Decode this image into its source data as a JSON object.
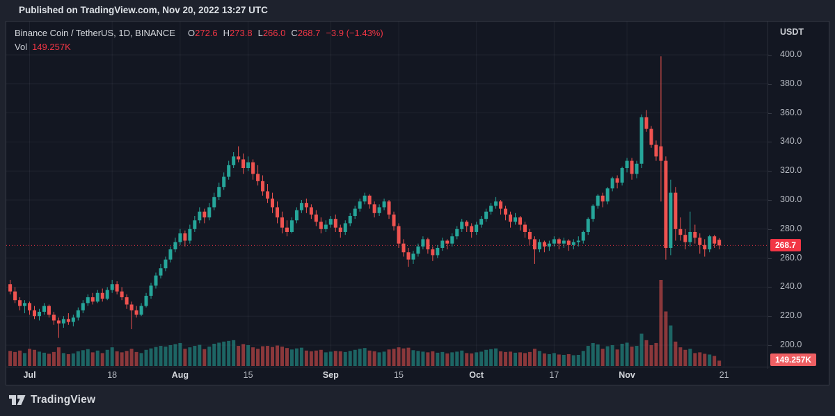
{
  "published_bar": {
    "text": "Published on TradingView.com, Nov 20, 2022 13:27 UTC"
  },
  "legend": {
    "title": "Binance Coin / TetherUS, 1D, BINANCE",
    "o_label": "O",
    "o_value": "272.6",
    "h_label": "H",
    "h_value": "273.8",
    "l_label": "L",
    "l_value": "266.0",
    "c_label": "C",
    "c_value": "268.7",
    "change": "−3.9 (−1.43%)",
    "vol_label": "Vol",
    "vol_value": "149.257K"
  },
  "price_axis": {
    "currency": "USDT",
    "ticks": [
      "400.0",
      "380.0",
      "360.0",
      "340.0",
      "320.0",
      "300.0",
      "280.0",
      "260.0",
      "240.0",
      "220.0",
      "200.0"
    ],
    "last_price_label": "268.7",
    "volume_label": "149.257K"
  },
  "footer": {
    "brand": "TradingView"
  },
  "colors": {
    "up": "#26a69a",
    "down": "#ef5350",
    "legend_value_red": "#f23645",
    "last_price_line": "#f23645",
    "grid": "rgba(240,243,250,0.06)",
    "background": "#131722",
    "outer_background": "#1e222d"
  },
  "chart_data": {
    "type": "candlestick",
    "title": "Binance Coin / TetherUS, 1D, BINANCE",
    "symbol": "Binance Coin / TetherUS",
    "interval": "1D",
    "exchange": "BINANCE",
    "currency": "USDT",
    "ylim": [
      200,
      400
    ],
    "price_gridlines": [
      200,
      220,
      240,
      260,
      280,
      300,
      320,
      340,
      360,
      380,
      400
    ],
    "x_ticks": [
      [
        "Jul",
        4
      ],
      [
        "18",
        21
      ],
      [
        "Aug",
        35
      ],
      [
        "15",
        49
      ],
      [
        "Sep",
        66
      ],
      [
        "15",
        80
      ],
      [
        "Oct",
        96
      ],
      [
        "17",
        112
      ],
      [
        "Nov",
        127
      ],
      [
        "21",
        147
      ]
    ],
    "last_close": 268.7,
    "last_volume": 149.257,
    "volume_unit": "K",
    "columns": [
      "open",
      "high",
      "low",
      "close",
      "volume_K"
    ],
    "candles": [
      [
        242,
        245,
        235,
        237,
        420
      ],
      [
        237,
        240,
        229,
        231,
        390
      ],
      [
        231,
        233,
        224,
        227,
        430
      ],
      [
        227,
        231,
        222,
        229,
        360
      ],
      [
        229,
        230,
        221,
        224,
        480
      ],
      [
        224,
        227,
        218,
        220,
        450
      ],
      [
        220,
        225,
        217,
        223,
        400
      ],
      [
        223,
        229,
        221,
        227,
        370
      ],
      [
        227,
        228,
        219,
        221,
        340
      ],
      [
        221,
        223,
        214,
        217,
        390
      ],
      [
        217,
        219,
        205,
        215,
        520
      ],
      [
        215,
        220,
        212,
        218,
        360
      ],
      [
        218,
        222,
        214,
        216,
        330
      ],
      [
        216,
        221,
        213,
        219,
        350
      ],
      [
        219,
        226,
        217,
        224,
        410
      ],
      [
        224,
        231,
        222,
        229,
        440
      ],
      [
        229,
        235,
        227,
        233,
        470
      ],
      [
        233,
        236,
        228,
        230,
        380
      ],
      [
        230,
        238,
        229,
        236,
        430
      ],
      [
        236,
        239,
        230,
        232,
        360
      ],
      [
        232,
        240,
        231,
        238,
        450
      ],
      [
        238,
        245,
        236,
        242,
        520
      ],
      [
        242,
        244,
        235,
        237,
        410
      ],
      [
        237,
        240,
        231,
        233,
        380
      ],
      [
        233,
        235,
        225,
        228,
        420
      ],
      [
        228,
        230,
        211,
        224,
        480
      ],
      [
        224,
        227,
        219,
        221,
        390
      ],
      [
        221,
        229,
        220,
        227,
        360
      ],
      [
        227,
        236,
        226,
        234,
        450
      ],
      [
        234,
        243,
        232,
        241,
        490
      ],
      [
        241,
        250,
        239,
        248,
        530
      ],
      [
        248,
        256,
        246,
        253,
        560
      ],
      [
        253,
        261,
        251,
        259,
        540
      ],
      [
        259,
        268,
        257,
        266,
        580
      ],
      [
        266,
        274,
        264,
        271,
        610
      ],
      [
        271,
        280,
        269,
        277,
        640
      ],
      [
        277,
        279,
        268,
        272,
        480
      ],
      [
        272,
        283,
        270,
        280,
        520
      ],
      [
        280,
        289,
        278,
        286,
        560
      ],
      [
        286,
        295,
        284,
        292,
        590
      ],
      [
        292,
        294,
        284,
        288,
        470
      ],
      [
        288,
        298,
        286,
        295,
        540
      ],
      [
        295,
        305,
        293,
        302,
        620
      ],
      [
        302,
        312,
        300,
        309,
        650
      ],
      [
        309,
        319,
        307,
        316,
        680
      ],
      [
        316,
        327,
        314,
        324,
        700
      ],
      [
        324,
        333,
        322,
        330,
        720
      ],
      [
        330,
        337,
        326,
        328,
        560
      ],
      [
        328,
        332,
        318,
        322,
        610
      ],
      [
        322,
        330,
        320,
        326,
        580
      ],
      [
        326,
        328,
        314,
        318,
        520
      ],
      [
        318,
        324,
        310,
        313,
        480
      ],
      [
        313,
        317,
        303,
        306,
        550
      ],
      [
        306,
        311,
        298,
        301,
        560
      ],
      [
        301,
        305,
        291,
        295,
        530
      ],
      [
        295,
        299,
        284,
        288,
        570
      ],
      [
        288,
        292,
        277,
        281,
        540
      ],
      [
        281,
        286,
        275,
        278,
        500
      ],
      [
        278,
        288,
        277,
        286,
        460
      ],
      [
        286,
        295,
        284,
        293,
        490
      ],
      [
        293,
        300,
        291,
        298,
        510
      ],
      [
        298,
        301,
        291,
        295,
        430
      ],
      [
        295,
        297,
        287,
        290,
        410
      ],
      [
        290,
        293,
        282,
        285,
        430
      ],
      [
        285,
        288,
        277,
        280,
        450
      ],
      [
        280,
        286,
        278,
        283,
        380
      ],
      [
        283,
        289,
        281,
        287,
        400
      ],
      [
        287,
        290,
        278,
        281,
        420
      ],
      [
        281,
        283,
        274,
        278,
        410
      ],
      [
        278,
        286,
        276,
        284,
        390
      ],
      [
        284,
        291,
        282,
        289,
        420
      ],
      [
        289,
        296,
        287,
        294,
        450
      ],
      [
        294,
        301,
        292,
        299,
        480
      ],
      [
        299,
        305,
        297,
        303,
        500
      ],
      [
        303,
        304,
        294,
        297,
        430
      ],
      [
        297,
        299,
        288,
        291,
        410
      ],
      [
        291,
        297,
        289,
        295,
        380
      ],
      [
        295,
        301,
        293,
        299,
        400
      ],
      [
        299,
        300,
        287,
        290,
        460
      ],
      [
        290,
        292,
        279,
        282,
        480
      ],
      [
        282,
        284,
        267,
        270,
        520
      ],
      [
        270,
        273,
        261,
        264,
        490
      ],
      [
        264,
        267,
        254,
        259,
        510
      ],
      [
        259,
        265,
        256,
        263,
        440
      ],
      [
        263,
        270,
        261,
        268,
        420
      ],
      [
        268,
        275,
        266,
        273,
        400
      ],
      [
        273,
        274,
        263,
        266,
        380
      ],
      [
        266,
        268,
        258,
        262,
        410
      ],
      [
        262,
        269,
        260,
        267,
        370
      ],
      [
        267,
        274,
        265,
        272,
        390
      ],
      [
        272,
        273,
        266,
        270,
        350
      ],
      [
        270,
        277,
        268,
        275,
        380
      ],
      [
        275,
        282,
        273,
        280,
        400
      ],
      [
        280,
        287,
        278,
        285,
        430
      ],
      [
        285,
        286,
        278,
        282,
        360
      ],
      [
        282,
        284,
        274,
        278,
        350
      ],
      [
        278,
        285,
        276,
        283,
        380
      ],
      [
        283,
        289,
        281,
        287,
        400
      ],
      [
        287,
        294,
        285,
        292,
        450
      ],
      [
        292,
        298,
        290,
        296,
        470
      ],
      [
        296,
        302,
        294,
        299,
        490
      ],
      [
        299,
        300,
        290,
        294,
        410
      ],
      [
        294,
        296,
        286,
        290,
        390
      ],
      [
        290,
        292,
        281,
        285,
        400
      ],
      [
        285,
        291,
        283,
        288,
        370
      ],
      [
        288,
        289,
        279,
        283,
        380
      ],
      [
        283,
        285,
        274,
        278,
        360
      ],
      [
        278,
        280,
        269,
        273,
        390
      ],
      [
        273,
        275,
        256,
        266,
        480
      ],
      [
        266,
        273,
        264,
        271,
        420
      ],
      [
        271,
        272,
        264,
        268,
        350
      ],
      [
        268,
        272,
        265,
        270,
        330
      ],
      [
        270,
        275,
        268,
        273,
        360
      ],
      [
        273,
        274,
        266,
        270,
        320
      ],
      [
        270,
        274,
        267,
        272,
        310
      ],
      [
        272,
        273,
        265,
        269,
        330
      ],
      [
        269,
        273,
        266,
        271,
        300
      ],
      [
        271,
        275,
        268,
        272,
        310
      ],
      [
        272,
        279,
        270,
        278,
        420
      ],
      [
        278,
        288,
        276,
        287,
        560
      ],
      [
        287,
        297,
        285,
        296,
        640
      ],
      [
        296,
        304,
        294,
        303,
        600
      ],
      [
        303,
        305,
        295,
        299,
        480
      ],
      [
        299,
        309,
        297,
        308,
        550
      ],
      [
        308,
        316,
        306,
        315,
        580
      ],
      [
        315,
        317,
        308,
        312,
        460
      ],
      [
        312,
        323,
        310,
        322,
        620
      ],
      [
        322,
        329,
        319,
        327,
        650
      ],
      [
        327,
        329,
        314,
        318,
        540
      ],
      [
        318,
        327,
        315,
        325,
        560
      ],
      [
        325,
        359,
        322,
        357,
        900
      ],
      [
        357,
        362,
        347,
        349,
        720
      ],
      [
        349,
        351,
        336,
        338,
        580
      ],
      [
        338,
        341,
        327,
        330,
        640
      ],
      [
        337,
        399,
        299,
        327,
        2400
      ],
      [
        327,
        330,
        259,
        267,
        1520
      ],
      [
        267,
        314,
        262,
        305,
        1130
      ],
      [
        305,
        309,
        272,
        280,
        680
      ],
      [
        280,
        288,
        272,
        276,
        520
      ],
      [
        276,
        280,
        266,
        271,
        450
      ],
      [
        271,
        292,
        268,
        278,
        480
      ],
      [
        278,
        283,
        270,
        274,
        360
      ],
      [
        274,
        277,
        263,
        269,
        380
      ],
      [
        269,
        273,
        261,
        266,
        340
      ],
      [
        266,
        276,
        264,
        275,
        320
      ],
      [
        275,
        276,
        267,
        270,
        280
      ],
      [
        272.6,
        273.8,
        266.0,
        268.7,
        149.257
      ]
    ]
  }
}
